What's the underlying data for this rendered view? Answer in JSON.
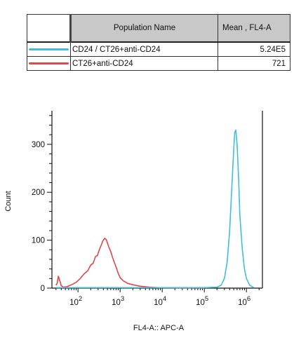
{
  "legend": {
    "header_name": "Population Name",
    "header_mean": "Mean , FL4-A",
    "rows": [
      {
        "name": "CD24 / CT26+anti-CD24",
        "value": "5.24E5",
        "color": "#3fbfdc"
      },
      {
        "name": "CT26+anti-CD24",
        "value": "721",
        "color": "#e0474c"
      }
    ]
  },
  "chart_data": {
    "type": "line",
    "xlabel": "FL4-A:: APC-A",
    "ylabel": "Count",
    "x_scale": "log",
    "xlim": [
      24,
      2400000
    ],
    "ylim": [
      0,
      370
    ],
    "y_ticks": [
      0,
      100,
      200,
      300
    ],
    "x_ticks": [
      {
        "value": 100,
        "base": "10",
        "exp": "2"
      },
      {
        "value": 1000,
        "base": "10",
        "exp": "3"
      },
      {
        "value": 10000,
        "base": "10",
        "exp": "4"
      },
      {
        "value": 100000,
        "base": "10",
        "exp": "5"
      },
      {
        "value": 1000000,
        "base": "10",
        "exp": "6"
      }
    ],
    "series": [
      {
        "name": "CT26+anti-CD24",
        "color": "#e0474c",
        "x": [
          30,
          32,
          34,
          37,
          40,
          45,
          55,
          70,
          90,
          110,
          140,
          170,
          200,
          230,
          260,
          290,
          320,
          350,
          390,
          430,
          470,
          510,
          550,
          600,
          650,
          720,
          800,
          900,
          1000,
          1200,
          1500,
          2000,
          3000,
          5000,
          8000,
          15000,
          30000,
          60000,
          100000
        ],
        "y": [
          6,
          10,
          25,
          15,
          5,
          2,
          3,
          7,
          12,
          19,
          30,
          36,
          48,
          52,
          66,
          68,
          80,
          88,
          99,
          104,
          101,
          92,
          84,
          76,
          66,
          55,
          44,
          31,
          22,
          15,
          10,
          7,
          4,
          2,
          1,
          1,
          0,
          1,
          0
        ]
      },
      {
        "name": "CD24 / CT26+anti-CD24",
        "color": "#3fbfdc",
        "x": [
          30,
          1000,
          10000,
          100000,
          200000,
          250000,
          300000,
          350000,
          400000,
          450000,
          500000,
          530000,
          560000,
          600000,
          650000,
          700000,
          800000,
          900000,
          1000000,
          1200000,
          1500000
        ],
        "y": [
          1,
          1,
          1,
          1,
          2,
          6,
          20,
          55,
          120,
          210,
          290,
          325,
          330,
          300,
          230,
          150,
          80,
          40,
          20,
          6,
          1
        ]
      }
    ]
  }
}
